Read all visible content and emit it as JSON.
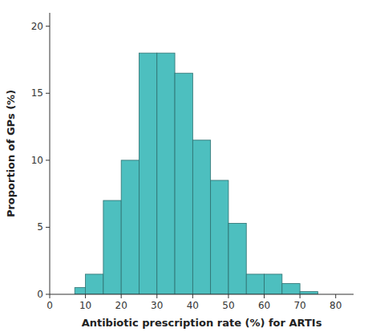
{
  "chart_data": {
    "type": "bar",
    "xlabel": "Antibiotic prescription rate (%) for ARTIs",
    "ylabel": "Proportion of GPs (%)",
    "x": [
      7,
      10,
      15,
      20,
      25,
      30,
      35,
      40,
      45,
      50,
      55,
      60,
      65,
      70
    ],
    "bar_width": 5,
    "values": [
      0.5,
      1.5,
      7.0,
      10.0,
      18.0,
      18.0,
      16.5,
      11.5,
      8.5,
      5.3,
      1.5,
      1.5,
      0.8,
      0.2
    ],
    "color": "#4DBFBF",
    "xlim": [
      0,
      85
    ],
    "ylim": [
      0,
      21
    ],
    "xticks": [
      0,
      10,
      20,
      30,
      40,
      50,
      60,
      70,
      80
    ],
    "yticks": [
      0,
      5,
      10,
      15,
      20
    ],
    "grid": false
  }
}
